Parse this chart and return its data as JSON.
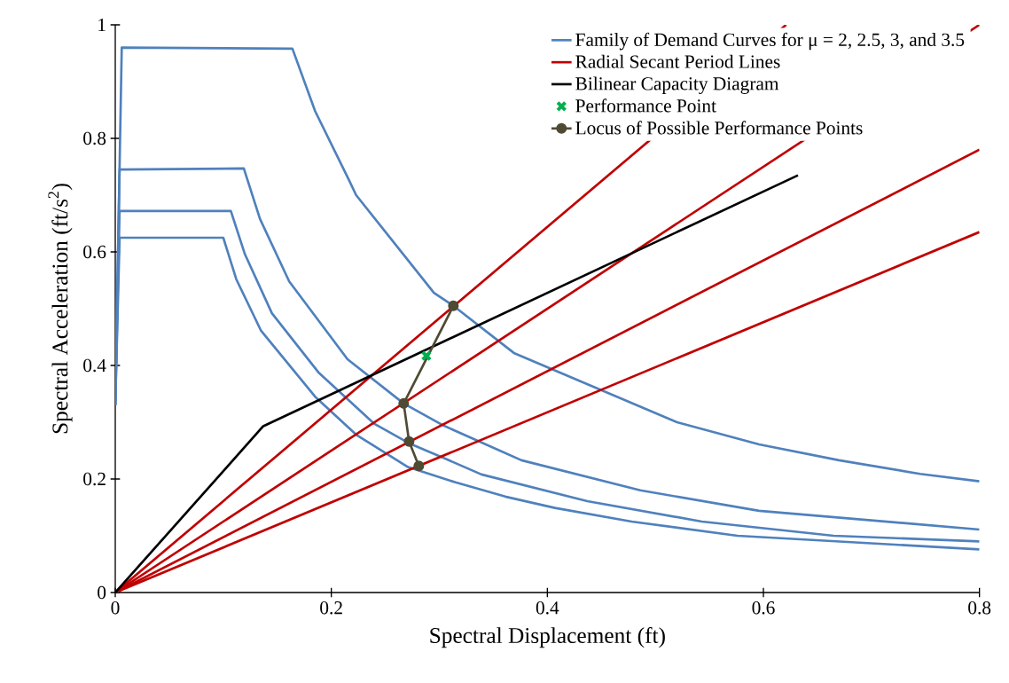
{
  "chart_data": {
    "type": "line",
    "xlabel": "Spectral Displacement (ft)",
    "ylabel": "Spectral Acceleration (ft/s$^{2}$)",
    "xlim": [
      0,
      0.8
    ],
    "ylim": [
      0,
      1
    ],
    "xticks": [
      0,
      0.2,
      0.4,
      0.6,
      0.8
    ],
    "yticks": [
      0,
      0.2,
      0.4,
      0.6,
      0.8,
      1
    ],
    "grid": false,
    "legend": "top right",
    "marker": "none",
    "line_style": "solid",
    "series": [
      {
        "name": "Locus of Possible Performance Points",
        "color": "#4f4a33",
        "marker": "circle",
        "x": [
          0.281,
          0.272,
          0.267,
          0.313
        ],
        "values": [
          0.223,
          0.266,
          0.333,
          0.505
        ]
      },
      {
        "name": "Family of Demand Curves for μ = 2, 2.5, 3, and 3.5",
        "color": "#4f81bd",
        "x": [
          0,
          0.006,
          0.164,
          0.185,
          0.216,
          0.223,
          0.295,
          0.313,
          0.369,
          0.52,
          0.596,
          0.67,
          0.745,
          0.8
        ],
        "values": [
          0.33,
          0.96,
          0.958,
          0.848,
          0.728,
          0.7,
          0.528,
          0.505,
          0.422,
          0.3,
          0.261,
          0.233,
          0.209,
          0.196
        ]
      },
      {
        "color": "#4f81bd",
        "x": [
          0,
          0.004,
          0.119,
          0.134,
          0.161,
          0.215,
          0.267,
          0.304,
          0.376,
          0.486,
          0.596,
          0.8
        ],
        "values": [
          0.33,
          0.745,
          0.747,
          0.658,
          0.548,
          0.411,
          0.333,
          0.294,
          0.233,
          0.18,
          0.144,
          0.111
        ]
      },
      {
        "color": "#4f81bd",
        "x": [
          0,
          0.004,
          0.107,
          0.12,
          0.145,
          0.188,
          0.24,
          0.273,
          0.304,
          0.339,
          0.437,
          0.543,
          0.665,
          0.8
        ],
        "values": [
          0.33,
          0.672,
          0.672,
          0.596,
          0.492,
          0.388,
          0.297,
          0.262,
          0.237,
          0.208,
          0.161,
          0.125,
          0.1,
          0.09
        ]
      },
      {
        "color": "#4f81bd",
        "x": [
          0,
          0.004,
          0.1,
          0.112,
          0.135,
          0.185,
          0.223,
          0.271,
          0.315,
          0.361,
          0.407,
          0.478,
          0.576,
          0.8
        ],
        "values": [
          0.33,
          0.625,
          0.625,
          0.552,
          0.461,
          0.345,
          0.278,
          0.221,
          0.194,
          0.169,
          0.149,
          0.125,
          0.1,
          0.076
        ]
      },
      {
        "name": "Radial Secant Period Lines",
        "color": "#c00000",
        "x": [
          0,
          0.621
        ],
        "values": [
          0,
          1.0
        ]
      },
      {
        "color": "#c00000",
        "x": [
          0,
          0.8
        ],
        "values": [
          0,
          1.0
        ]
      },
      {
        "color": "#c00000",
        "x": [
          0,
          0.8
        ],
        "values": [
          0,
          0.78
        ]
      },
      {
        "color": "#c00000",
        "x": [
          0,
          0.8
        ],
        "values": [
          0,
          0.635
        ]
      },
      {
        "name": "Bilinear Capacity Diagram",
        "color": "#000000",
        "x": [
          0,
          0.137,
          0.632
        ],
        "values": [
          0,
          0.293,
          0.735
        ]
      },
      {
        "name": "Performance Point",
        "type": "scatter",
        "marker": "cross",
        "color": "#00b050",
        "x": [
          0.288
        ],
        "values": [
          0.417
        ]
      }
    ]
  }
}
